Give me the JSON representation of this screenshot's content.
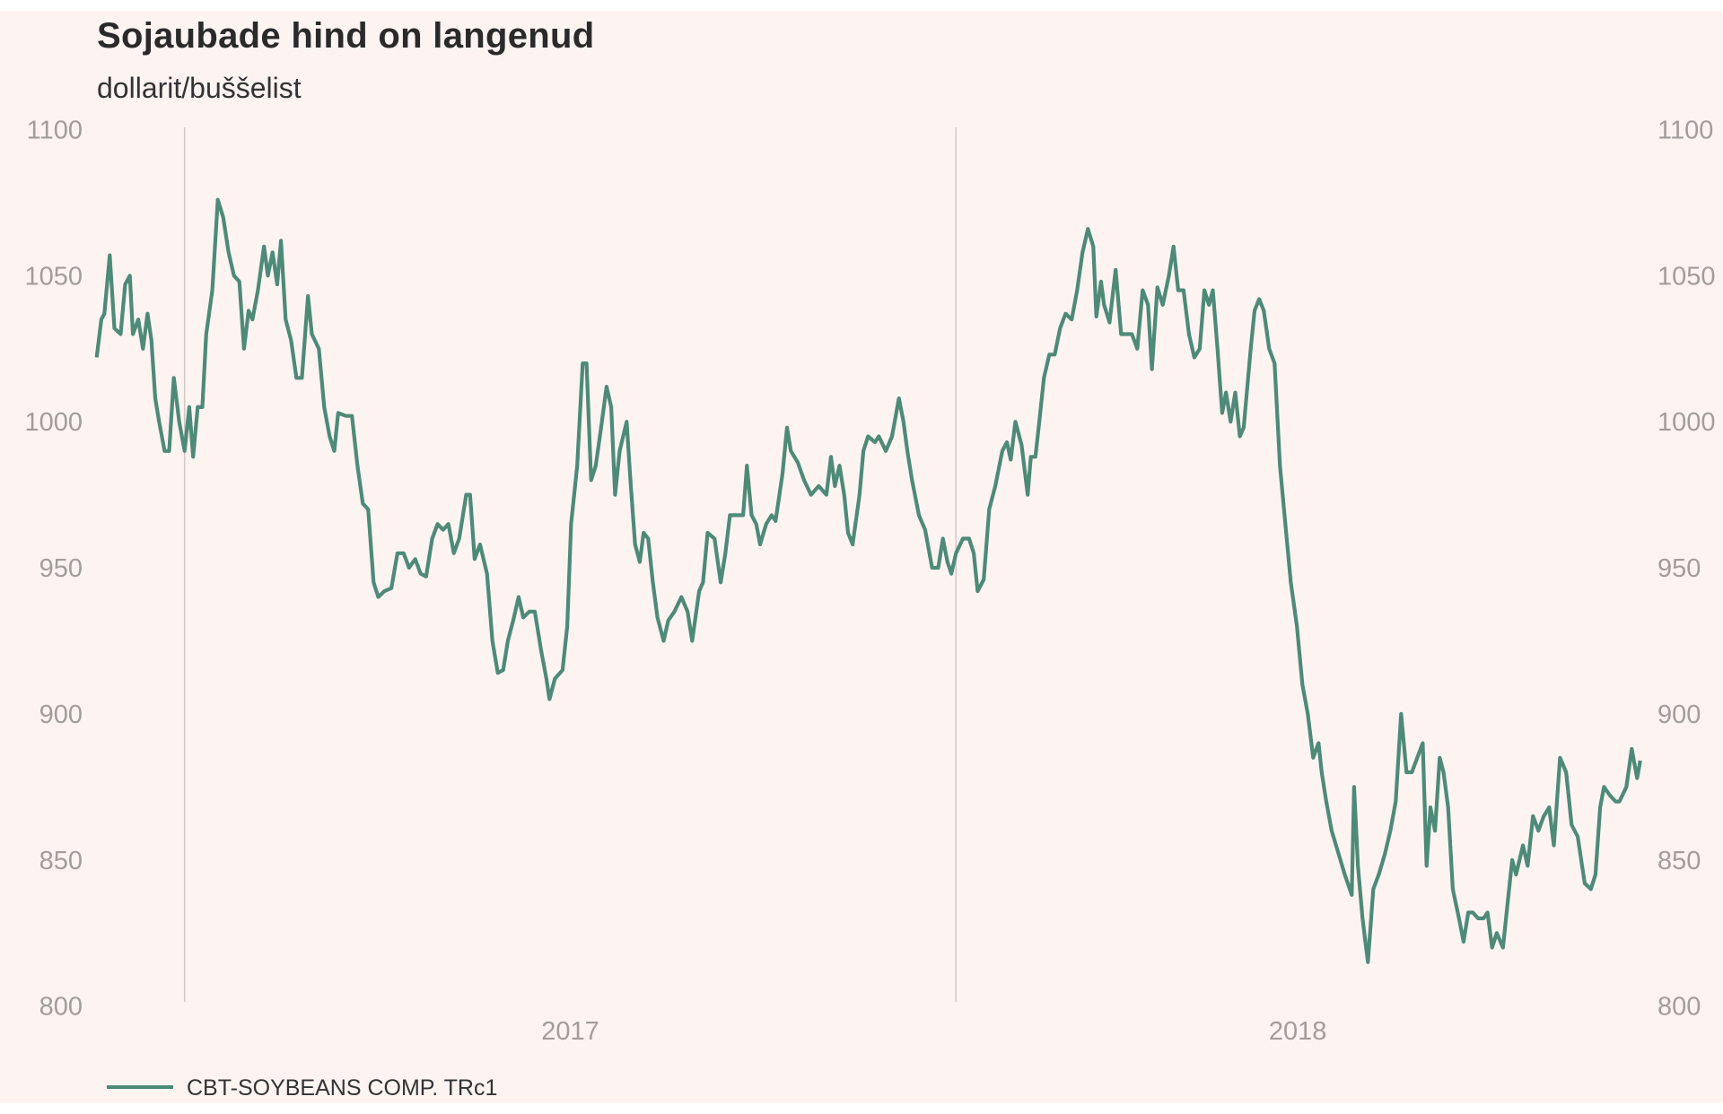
{
  "chart_data": {
    "type": "line",
    "title": "Sojaubade hind on langenud",
    "subtitle": "dollarit/buššelist",
    "xlabel": "",
    "ylabel": "",
    "ylim": [
      800,
      1100
    ],
    "xlim": [
      2016.886,
      2018.887
    ],
    "yticks": [
      800,
      850,
      900,
      950,
      1000,
      1050,
      1100
    ],
    "y_axis_sides": [
      "left",
      "right"
    ],
    "xtick_labels": [
      {
        "label": "2017",
        "at": 2017.5
      },
      {
        "label": "2018",
        "at": 2018.443
      }
    ],
    "year_separators": [
      2017,
      2018
    ],
    "grid": false,
    "legend_placement": "bottom-left",
    "colors": {
      "series": "#4e8a78",
      "background": "#fdf4f2",
      "separator": "#cfc9c7"
    },
    "series": [
      {
        "name": "CBT-SOYBEANS COMP. TRc1",
        "x": [
          2016.886,
          2016.892,
          2016.896,
          2016.903,
          2016.909,
          2016.917,
          2016.923,
          2016.929,
          2016.933,
          2016.94,
          2016.946,
          2016.952,
          2016.957,
          2016.962,
          2016.967,
          2016.974,
          2016.98,
          2016.986,
          2016.993,
          2017.0,
          2017.006,
          2017.011,
          2017.017,
          2017.023,
          2017.028,
          2017.036,
          2017.043,
          2017.05,
          2017.057,
          2017.064,
          2017.071,
          2017.077,
          2017.083,
          2017.088,
          2017.095,
          2017.103,
          2017.108,
          2017.114,
          2017.12,
          2017.125,
          2017.131,
          2017.138,
          2017.145,
          2017.152,
          2017.16,
          2017.165,
          2017.174,
          2017.181,
          2017.188,
          2017.194,
          2017.199,
          2017.209,
          2017.217,
          2017.224,
          2017.231,
          2017.238,
          2017.245,
          2017.251,
          2017.259,
          2017.268,
          2017.276,
          2017.284,
          2017.291,
          2017.299,
          2017.306,
          2017.313,
          2017.321,
          2017.328,
          2017.335,
          2017.342,
          2017.349,
          2017.356,
          2017.365,
          2017.37,
          2017.376,
          2017.383,
          2017.392,
          2017.399,
          2017.406,
          2017.413,
          2017.419,
          2017.426,
          2017.433,
          2017.439,
          2017.447,
          2017.454,
          2017.462,
          2017.469,
          2017.473,
          2017.48,
          2017.49,
          2017.496,
          2017.501,
          2017.509,
          2017.516,
          2017.521,
          2017.527,
          2017.533,
          2017.541,
          2017.547,
          2017.553,
          2017.558,
          2017.564,
          2017.573,
          2017.578,
          2017.584,
          2017.59,
          2017.595,
          2017.601,
          2017.607,
          2017.613,
          2017.621,
          2017.627,
          2017.635,
          2017.644,
          2017.652,
          2017.658,
          2017.667,
          2017.672,
          2017.678,
          2017.687,
          2017.695,
          2017.701,
          2017.707,
          2017.715,
          2017.724,
          2017.729,
          2017.735,
          2017.741,
          2017.746,
          2017.754,
          2017.761,
          2017.766,
          2017.775,
          2017.781,
          2017.786,
          2017.795,
          2017.803,
          2017.812,
          2017.822,
          2017.832,
          2017.838,
          2017.843,
          2017.849,
          2017.855,
          2017.86,
          2017.866,
          2017.875,
          2017.88,
          2017.886,
          2017.895,
          2017.9,
          2017.909,
          2017.917,
          2017.926,
          2017.932,
          2017.937,
          2017.943,
          2017.952,
          2017.96,
          2017.969,
          2017.977,
          2017.983,
          2017.989,
          2017.994,
          2018.0,
          2018.009,
          2018.017,
          2018.023,
          2018.028,
          2018.036,
          2018.043,
          2018.051,
          2018.06,
          2018.066,
          2018.071,
          2018.077,
          2018.085,
          2018.093,
          2018.097,
          2018.103,
          2018.108,
          2018.114,
          2018.121,
          2018.128,
          2018.135,
          2018.142,
          2018.15,
          2018.157,
          2018.164,
          2018.171,
          2018.178,
          2018.182,
          2018.188,
          2018.192,
          2018.199,
          2018.207,
          2018.214,
          2018.221,
          2018.228,
          2018.235,
          2018.242,
          2018.249,
          2018.254,
          2018.261,
          2018.268,
          2018.276,
          2018.282,
          2018.288,
          2018.295,
          2018.302,
          2018.309,
          2018.316,
          2018.322,
          2018.328,
          2018.333,
          2018.339,
          2018.345,
          2018.35,
          2018.356,
          2018.362,
          2018.368,
          2018.373,
          2018.382,
          2018.387,
          2018.393,
          2018.399,
          2018.406,
          2018.413,
          2018.42,
          2018.427,
          2018.434,
          2018.442,
          2018.449,
          2018.456,
          2018.463,
          2018.47,
          2018.474,
          2018.48,
          2018.487,
          2018.496,
          2018.504,
          2018.513,
          2018.516,
          2018.521,
          2018.527,
          2018.534,
          2018.541,
          2018.548,
          2018.556,
          2018.563,
          2018.57,
          2018.577,
          2018.584,
          2018.591,
          2018.598,
          2018.605,
          2018.61,
          2018.615,
          2018.621,
          2018.627,
          2018.632,
          2018.638,
          2018.644,
          2018.652,
          2018.658,
          2018.664,
          2018.67,
          2018.677,
          2018.684,
          2018.689,
          2018.695,
          2018.701,
          2018.709,
          2018.715,
          2018.721,
          2018.726,
          2018.735,
          2018.741,
          2018.748,
          2018.755,
          2018.762,
          2018.769,
          2018.775,
          2018.783,
          2018.791,
          2018.798,
          2018.806,
          2018.815,
          2018.823,
          2018.829,
          2018.835,
          2018.84,
          2018.848,
          2018.855,
          2018.86,
          2018.869,
          2018.876,
          2018.883,
          2018.887
        ],
        "y": [
          1022,
          1035,
          1037,
          1057,
          1032,
          1030,
          1047,
          1050,
          1030,
          1035,
          1025,
          1037,
          1028,
          1008,
          1000,
          990,
          990,
          1015,
          1000,
          990,
          1005,
          988,
          1005,
          1005,
          1030,
          1045,
          1076,
          1070,
          1058,
          1050,
          1048,
          1025,
          1038,
          1035,
          1045,
          1060,
          1050,
          1058,
          1047,
          1062,
          1035,
          1028,
          1015,
          1015,
          1043,
          1030,
          1025,
          1005,
          995,
          990,
          1003,
          1002,
          1002,
          985,
          972,
          970,
          945,
          940,
          942,
          943,
          955,
          955,
          950,
          953,
          948,
          947,
          960,
          965,
          963,
          965,
          955,
          960,
          975,
          975,
          953,
          958,
          948,
          925,
          914,
          915,
          925,
          932,
          940,
          933,
          935,
          935,
          922,
          912,
          905,
          912,
          915,
          930,
          965,
          985,
          1020,
          1020,
          980,
          985,
          1000,
          1012,
          1005,
          975,
          990,
          1000,
          980,
          958,
          952,
          962,
          960,
          945,
          933,
          925,
          932,
          935,
          940,
          935,
          925,
          942,
          945,
          962,
          960,
          945,
          955,
          968,
          968,
          968,
          985,
          968,
          965,
          958,
          965,
          968,
          966,
          982,
          998,
          990,
          986,
          980,
          975,
          978,
          975,
          988,
          978,
          985,
          975,
          962,
          958,
          975,
          990,
          995,
          993,
          995,
          990,
          995,
          1008,
          1000,
          990,
          980,
          968,
          963,
          950,
          950,
          960,
          952,
          948,
          955,
          960,
          960,
          955,
          942,
          946,
          970,
          978,
          990,
          993,
          987,
          1000,
          992,
          975,
          988,
          988,
          1000,
          1015,
          1023,
          1023,
          1032,
          1037,
          1035,
          1045,
          1058,
          1066,
          1060,
          1036,
          1048,
          1040,
          1034,
          1052,
          1030,
          1030,
          1030,
          1025,
          1045,
          1040,
          1018,
          1046,
          1040,
          1050,
          1060,
          1045,
          1045,
          1030,
          1022,
          1025,
          1045,
          1040,
          1045,
          1025,
          1003,
          1010,
          1000,
          1010,
          995,
          998,
          1025,
          1038,
          1042,
          1038,
          1025,
          1020,
          985,
          965,
          945,
          930,
          910,
          900,
          885,
          890,
          880,
          870,
          860,
          852,
          845,
          838,
          875,
          848,
          830,
          815,
          840,
          845,
          852,
          860,
          870,
          900,
          880,
          880,
          885,
          890,
          848,
          868,
          860,
          885,
          880,
          868,
          840,
          830,
          822,
          832,
          832,
          830,
          830,
          832,
          820,
          825,
          820,
          835,
          850,
          845,
          855,
          848,
          865,
          860,
          865,
          868,
          855,
          885,
          880,
          862,
          858,
          842,
          840,
          845,
          868,
          875,
          872,
          870,
          870,
          875,
          888,
          878,
          884
        ]
      }
    ]
  }
}
